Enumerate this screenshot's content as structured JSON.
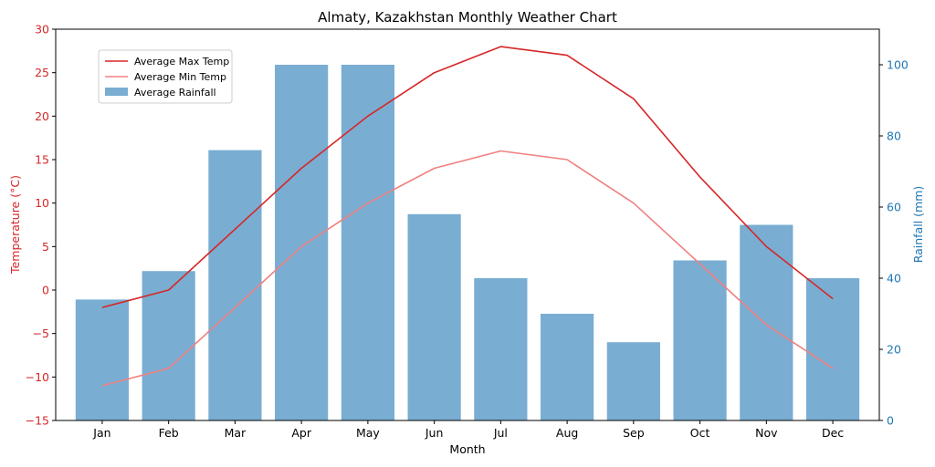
{
  "chart_data": {
    "type": "bar+line",
    "title": "Almaty, Kazakhstan Monthly Weather Chart",
    "xlabel": "Month",
    "ylabel_left": "Temperature (°C)",
    "ylabel_right": "Rainfall (mm)",
    "categories": [
      "Jan",
      "Feb",
      "Mar",
      "Apr",
      "May",
      "Jun",
      "Jul",
      "Aug",
      "Sep",
      "Oct",
      "Nov",
      "Dec"
    ],
    "ylim_left": [
      -15,
      30
    ],
    "yticks_left": [
      "30",
      "25",
      "20",
      "15",
      "10",
      "5",
      "0",
      "−5",
      "−10",
      "−15"
    ],
    "yticks_left_values": [
      30,
      25,
      20,
      15,
      10,
      5,
      0,
      -5,
      -10,
      -15
    ],
    "ylim_right": [
      0,
      110
    ],
    "yticks_right": [
      "100",
      "80",
      "60",
      "40",
      "20",
      "0"
    ],
    "yticks_right_values": [
      100,
      80,
      60,
      40,
      20,
      0
    ],
    "series": [
      {
        "name": "Average Max Temp",
        "axis": "left",
        "kind": "line",
        "values": [
          -2,
          0,
          7,
          14,
          20,
          25,
          28,
          27,
          22,
          13,
          5,
          -1
        ]
      },
      {
        "name": "Average Min Temp",
        "axis": "left",
        "kind": "line",
        "values": [
          -11,
          -9,
          -2,
          5,
          10,
          14,
          16,
          15,
          10,
          3,
          -4,
          -9
        ]
      },
      {
        "name": "Average Rainfall",
        "axis": "right",
        "kind": "bar",
        "values": [
          34,
          42,
          76,
          100,
          100,
          58,
          40,
          30,
          22,
          45,
          55,
          40
        ]
      }
    ],
    "legend": {
      "position": "upper-left",
      "entries": [
        "Average Max Temp",
        "Average Min Temp",
        "Average Rainfall"
      ]
    },
    "colors": {
      "max_temp": "#d62728",
      "min_temp": "#f08080",
      "rainfall": "#1f77b4",
      "left_axis": "#d62728",
      "right_axis": "#1f77b4"
    }
  }
}
